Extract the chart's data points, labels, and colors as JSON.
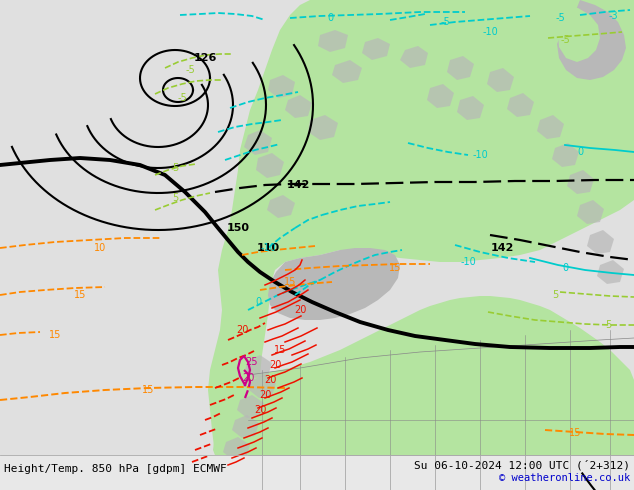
{
  "title_left": "Height/Temp. 850 hPa [gdpm] ECMWF",
  "title_right": "Su 06-10-2024 12:00 UTC (´2+312)",
  "copyright": "© weatheronline.co.uk",
  "bg_color": "#e0e0e0",
  "ocean_color": "#d8d8d8",
  "land_green": "#b4e4a0",
  "land_gray": "#b8b8b8",
  "title_font_size": 8,
  "copyright_font_size": 7.5,
  "copyright_color": "#0000cc"
}
